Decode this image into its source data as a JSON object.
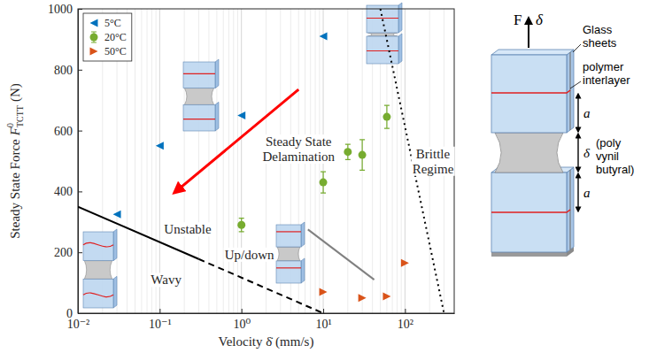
{
  "chart_data": {
    "type": "scatter",
    "x_label": "Velocity δ̇ (mm/s)",
    "y_label": {
      "text": "Steady State Force",
      "symbol": "F",
      "sup": "0",
      "sub": "TCTT",
      "unit": "(N)"
    },
    "log": "x",
    "grid": true,
    "legend": "upper left",
    "xlim": [
      0.01,
      400
    ],
    "xticks": [
      {
        "value": 0.01,
        "label": "10⁻²"
      },
      {
        "value": 0.1,
        "label": "10⁻¹"
      },
      {
        "value": 1,
        "label": "10⁰"
      },
      {
        "value": 10,
        "label": "10¹"
      },
      {
        "value": 100,
        "label": "10²"
      }
    ],
    "x_minor_ticks": [
      0.02,
      0.03,
      0.04,
      0.05,
      0.06,
      0.07,
      0.08,
      0.09,
      0.2,
      0.3,
      0.4,
      0.5,
      0.6,
      0.7,
      0.8,
      0.9,
      2,
      3,
      4,
      5,
      6,
      7,
      8,
      9,
      20,
      30,
      40,
      50,
      60,
      70,
      80,
      90,
      200,
      300
    ],
    "ylim": [
      0,
      1000
    ],
    "yticks": [
      0,
      200,
      400,
      600,
      800,
      1000
    ],
    "series": [
      {
        "name": "5°C",
        "color": "#0072bd",
        "marker": "triangle-left",
        "x": [
          0.03,
          0.1,
          1,
          10
        ],
        "values": [
          325,
          550,
          650,
          910
        ]
      },
      {
        "name": "20°C",
        "color": "#77ac30",
        "marker": "circle",
        "x": [
          1,
          10,
          20,
          30,
          60
        ],
        "values": [
          290,
          430,
          530,
          520,
          645
        ],
        "errors": [
          22,
          35,
          25,
          50,
          38
        ]
      },
      {
        "name": "50°C",
        "color": "#d95319",
        "marker": "triangle-right",
        "x": [
          10,
          30,
          60,
          100
        ],
        "values": [
          70,
          50,
          55,
          165
        ]
      }
    ],
    "lines": [
      {
        "x": [
          0.01,
          0.3
        ],
        "values": [
          350,
          178
        ],
        "color": "#000000",
        "line_style": "solid"
      },
      {
        "x": [
          0.3,
          10
        ],
        "values": [
          178,
          0
        ],
        "color": "#000000",
        "line_style": "dashed"
      },
      {
        "x": [
          6.5,
          42
        ],
        "values": [
          275,
          110
        ],
        "color": "#808080",
        "line_style": "solid"
      },
      {
        "x": [
          50,
          300
        ],
        "values": [
          1000,
          0
        ],
        "color": "#000000",
        "line_style": "dotted"
      }
    ],
    "arrow": {
      "x": [
        5,
        0.15
      ],
      "values": [
        735,
        395
      ],
      "color": "#ff0000"
    },
    "annotations": [
      {
        "text": "Steady State Delamination",
        "x": 5,
        "y": 540
      },
      {
        "text": "Brittle Regime",
        "x": 220,
        "y": 500
      },
      {
        "text": "Unstable",
        "x": 0.22,
        "y": 276
      },
      {
        "text": "Wavy",
        "x": 0.12,
        "y": 110
      },
      {
        "text": "Up/down",
        "x": 1.25,
        "y": 193
      }
    ]
  },
  "diagram": {
    "force_label": "F",
    "displacement_label": "δ",
    "glass_label": "Glass sheets",
    "interlayer_label": "polymer interlayer",
    "material_label": "(poly vynil butyral)",
    "dimension_labels": [
      "a",
      "δ",
      "a"
    ]
  }
}
